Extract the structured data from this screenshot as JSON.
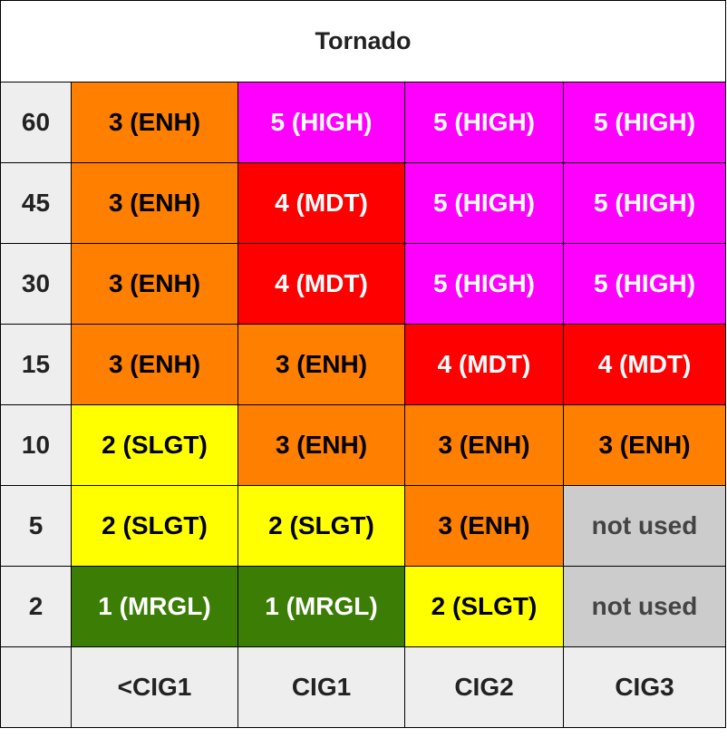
{
  "title": "Tornado",
  "rows": [
    {
      "label": "60",
      "cells": [
        {
          "text": "3 (ENH)",
          "level": "enh"
        },
        {
          "text": "5 (HIGH)",
          "level": "high"
        },
        {
          "text": "5 (HIGH)",
          "level": "high"
        },
        {
          "text": "5 (HIGH)",
          "level": "high"
        }
      ]
    },
    {
      "label": "45",
      "cells": [
        {
          "text": "3 (ENH)",
          "level": "enh"
        },
        {
          "text": "4 (MDT)",
          "level": "mdt"
        },
        {
          "text": "5 (HIGH)",
          "level": "high"
        },
        {
          "text": "5 (HIGH)",
          "level": "high"
        }
      ]
    },
    {
      "label": "30",
      "cells": [
        {
          "text": "3 (ENH)",
          "level": "enh"
        },
        {
          "text": "4 (MDT)",
          "level": "mdt"
        },
        {
          "text": "5 (HIGH)",
          "level": "high"
        },
        {
          "text": "5 (HIGH)",
          "level": "high"
        }
      ]
    },
    {
      "label": "15",
      "cells": [
        {
          "text": "3 (ENH)",
          "level": "enh"
        },
        {
          "text": "3 (ENH)",
          "level": "enh"
        },
        {
          "text": "4 (MDT)",
          "level": "mdt"
        },
        {
          "text": "4 (MDT)",
          "level": "mdt"
        }
      ]
    },
    {
      "label": "10",
      "cells": [
        {
          "text": "2 (SLGT)",
          "level": "slgt"
        },
        {
          "text": "3 (ENH)",
          "level": "enh"
        },
        {
          "text": "3 (ENH)",
          "level": "enh"
        },
        {
          "text": "3 (ENH)",
          "level": "enh"
        }
      ]
    },
    {
      "label": "5",
      "cells": [
        {
          "text": "2 (SLGT)",
          "level": "slgt"
        },
        {
          "text": "2 (SLGT)",
          "level": "slgt"
        },
        {
          "text": "3 (ENH)",
          "level": "enh"
        },
        {
          "text": "not used",
          "level": "none"
        }
      ]
    },
    {
      "label": "2",
      "cells": [
        {
          "text": "1 (MRGL)",
          "level": "mrgl"
        },
        {
          "text": "1 (MRGL)",
          "level": "mrgl"
        },
        {
          "text": "2 (SLGT)",
          "level": "slgt"
        },
        {
          "text": "not used",
          "level": "none"
        }
      ]
    }
  ],
  "columns": [
    "<CIG1",
    "CIG1",
    "CIG2",
    "CIG3"
  ],
  "colors": {
    "mrgl": "#3b7d05",
    "slgt": "#ffff00",
    "enh": "#ff7f00",
    "mdt": "#fe0000",
    "high": "#ff00ff",
    "none": "#cccccc",
    "header_bg": "#eeeeee"
  }
}
